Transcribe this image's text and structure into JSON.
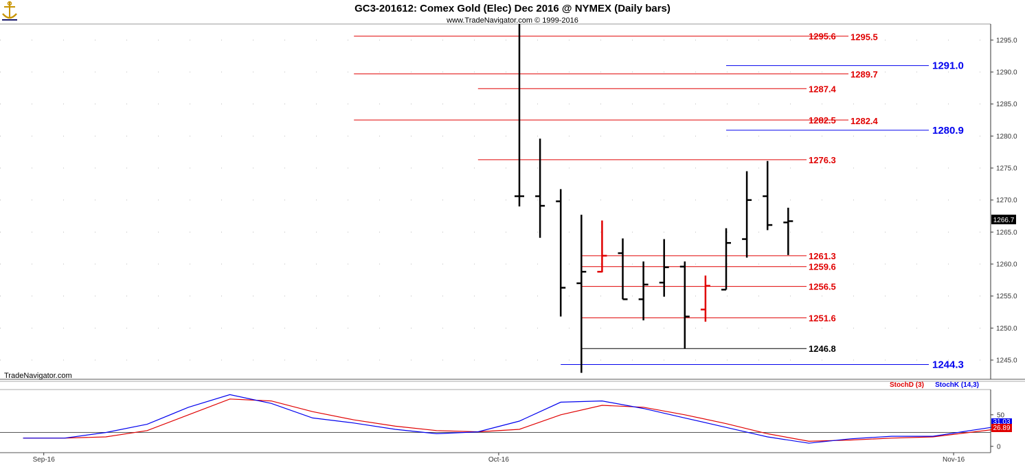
{
  "title": "GC3-201612:  Comex Gold (Elec) Dec 2016 @ NYMEX  (Daily bars)",
  "subtitle": "www.TradeNavigator.com © 1999-2016",
  "watermark": "TradeNavigator.com",
  "logo_icon": "ship-anchor-logo-icon",
  "colors": {
    "bar_up": "#000000",
    "bar_down": "#e00000",
    "level_red": "#e00000",
    "level_blue": "#0000ee",
    "level_black": "#000000",
    "stoch_d": "#e00000",
    "stoch_k": "#0000ee"
  },
  "chart_data": [
    {
      "type": "ohlc",
      "title": "GC3-201612:  Comex Gold (Elec) Dec 2016 @ NYMEX  (Daily bars)",
      "ylim": [
        1242,
        1297.5
      ],
      "yticks": [
        "1245.0",
        "1250.0",
        "1255.0",
        "1260.0",
        "1265.0",
        "1270.0",
        "1275.0",
        "1280.0",
        "1285.0",
        "1290.0",
        "1295.0"
      ],
      "x_labels": [
        {
          "label": "Sep-16",
          "index": -23
        },
        {
          "label": "Oct-16",
          "index": -1
        },
        {
          "label": "Nov-16",
          "index": 21
        }
      ],
      "last_price": "1266.7",
      "bars": [
        {
          "o": 1270.6,
          "h": 1300.0,
          "l": 1269.0,
          "c": 1270.6,
          "color": "black"
        },
        {
          "o": 1270.6,
          "h": 1279.6,
          "l": 1264.1,
          "c": 1269.1,
          "color": "black"
        },
        {
          "o": 1269.8,
          "h": 1271.7,
          "l": 1251.8,
          "c": 1256.3,
          "color": "black"
        },
        {
          "o": 1257.0,
          "h": 1267.7,
          "l": 1243.0,
          "c": 1258.8,
          "color": "black"
        },
        {
          "o": 1258.8,
          "h": 1266.8,
          "l": 1258.7,
          "c": 1261.3,
          "color": "red"
        },
        {
          "o": 1261.7,
          "h": 1264.0,
          "l": 1254.5,
          "c": 1254.5,
          "color": "black"
        },
        {
          "o": 1254.5,
          "h": 1260.4,
          "l": 1251.2,
          "c": 1256.8,
          "color": "black"
        },
        {
          "o": 1257.1,
          "h": 1263.9,
          "l": 1254.9,
          "c": 1259.5,
          "color": "black"
        },
        {
          "o": 1259.6,
          "h": 1260.4,
          "l": 1246.8,
          "c": 1251.8,
          "color": "black"
        },
        {
          "o": 1252.9,
          "h": 1258.2,
          "l": 1251.0,
          "c": 1256.6,
          "color": "red"
        },
        {
          "o": 1256.0,
          "h": 1265.6,
          "l": 1256.0,
          "c": 1263.3,
          "color": "black"
        },
        {
          "o": 1263.9,
          "h": 1274.5,
          "l": 1261.0,
          "c": 1270.0,
          "color": "black"
        },
        {
          "o": 1270.6,
          "h": 1276.1,
          "l": 1265.3,
          "c": 1266.1,
          "color": "black"
        },
        {
          "o": 1266.5,
          "h": 1268.8,
          "l": 1261.4,
          "c": 1266.7,
          "color": "black"
        }
      ],
      "levels": [
        {
          "price": 1295.6,
          "label": "1295.6",
          "color": "red",
          "from": -8
        },
        {
          "price": 1295.5,
          "label": "1295.5",
          "color": "red",
          "from": -8,
          "label_only": true
        },
        {
          "price": 1291.0,
          "label": "1291.0",
          "color": "blue",
          "from": 10,
          "big": true
        },
        {
          "price": 1289.7,
          "label": "1289.7",
          "color": "red",
          "from": -8
        },
        {
          "price": 1287.4,
          "label": "1287.4",
          "color": "red",
          "from": -2
        },
        {
          "price": 1282.5,
          "label": "1282.5",
          "color": "red",
          "from": -8
        },
        {
          "price": 1282.4,
          "label": "1282.4",
          "color": "red",
          "from": -8,
          "label_only": true
        },
        {
          "price": 1280.9,
          "label": "1280.9",
          "color": "blue",
          "from": 10,
          "big": true
        },
        {
          "price": 1276.3,
          "label": "1276.3",
          "color": "red",
          "from": -2
        },
        {
          "price": 1261.3,
          "label": "1261.3",
          "color": "red",
          "from": 3
        },
        {
          "price": 1259.6,
          "label": "1259.6",
          "color": "red",
          "from": 3
        },
        {
          "price": 1256.5,
          "label": "1256.5",
          "color": "red",
          "from": 3
        },
        {
          "price": 1251.6,
          "label": "1251.6",
          "color": "red",
          "from": 3
        },
        {
          "price": 1246.8,
          "label": "1246.8",
          "color": "black",
          "from": 3
        },
        {
          "price": 1244.3,
          "label": "1244.3",
          "color": "blue",
          "from": 2,
          "big": true
        }
      ]
    },
    {
      "type": "line",
      "title": "Stochastic",
      "ylim": [
        -10,
        90
      ],
      "yticks": [
        "0",
        "50"
      ],
      "reference_line": 22,
      "series": [
        {
          "name": "StochD (3)",
          "color": "red",
          "x": [
            -24,
            -22,
            -20,
            -18,
            -16,
            -14,
            -12,
            -10,
            -8,
            -6,
            -4,
            -2,
            0,
            2,
            4,
            6,
            8,
            10,
            12,
            14,
            16,
            18,
            20,
            23
          ],
          "values": [
            13,
            13,
            15,
            25,
            50,
            75,
            72,
            55,
            42,
            32,
            25,
            23,
            27,
            50,
            65,
            62,
            50,
            36,
            20,
            8,
            10,
            13,
            15,
            27
          ]
        },
        {
          "name": "StochK (14,3)",
          "color": "blue",
          "x": [
            -24,
            -22,
            -20,
            -18,
            -16,
            -14,
            -12,
            -10,
            -8,
            -6,
            -4,
            -2,
            0,
            2,
            4,
            6,
            8,
            10,
            12,
            14,
            16,
            18,
            20,
            23
          ],
          "values": [
            13,
            13,
            22,
            35,
            62,
            82,
            68,
            45,
            37,
            27,
            20,
            23,
            40,
            70,
            72,
            60,
            45,
            30,
            15,
            5,
            12,
            16,
            16,
            31
          ]
        }
      ],
      "last_values": [
        "31.03",
        "26.89"
      ]
    }
  ]
}
